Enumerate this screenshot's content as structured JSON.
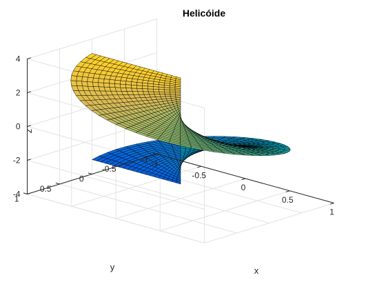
{
  "chart_data": {
    "type": "surface",
    "title": "Helicóide",
    "xlabel": "x",
    "ylabel": "y",
    "zlabel": "z",
    "xlim": [
      -1,
      1
    ],
    "ylim": [
      -1,
      1
    ],
    "zlim": [
      -4,
      4
    ],
    "xticks": [
      "-1",
      "-0.5",
      "0",
      "0.5",
      "1"
    ],
    "yticks": [
      "-1",
      "-0.5",
      "0",
      "0.5",
      "1"
    ],
    "zticks": [
      "-4",
      "-2",
      "0",
      "2",
      "4"
    ],
    "x_tick_values": [
      -1,
      -0.5,
      0,
      0.5,
      1
    ],
    "y_tick_values": [
      -1,
      -0.5,
      0,
      0.5,
      1
    ],
    "z_tick_values": [
      -4,
      -2,
      0,
      2,
      4
    ],
    "surface": {
      "name": "helicoid",
      "x_equation": "r*cos(t)",
      "y_equation": "r*sin(t)",
      "z_equation": "t",
      "r_range": [
        0,
        1
      ],
      "t_range": [
        -3.14159,
        3.14159
      ],
      "r_steps": 20,
      "t_steps": 60
    },
    "view": {
      "azimuth": -37.5,
      "elevation": 30
    },
    "grid": true,
    "box": false,
    "colormap": "parula",
    "colormap_stops": [
      "#352a87",
      "#0363e1",
      "#1485d4",
      "#06a7c6",
      "#38b99e",
      "#92bf73",
      "#d9ba56",
      "#fcce2e",
      "#f9fb0e"
    ]
  }
}
